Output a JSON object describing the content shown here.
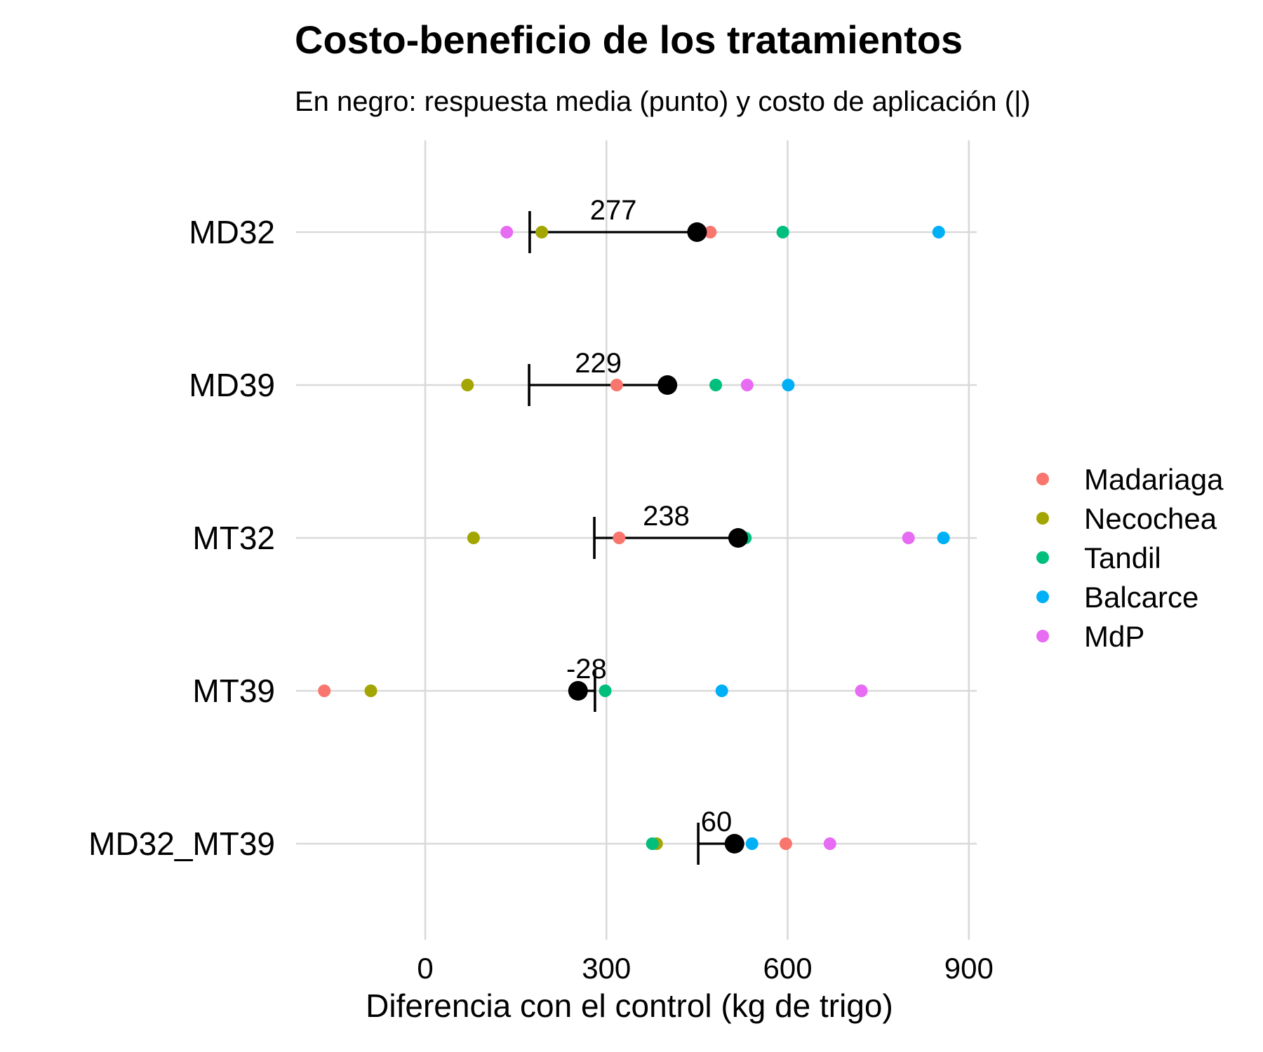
{
  "chart_data": {
    "type": "scatter",
    "title": "Costo-beneficio de los tratamientos",
    "subtitle": "En negro: respuesta media (punto) y costo de aplicación (|)",
    "xlabel": "Diferencia con el control (kg de trigo)",
    "ylabel": "",
    "xlim": [
      -170,
      920
    ],
    "x_ticks": [
      0,
      300,
      600,
      900
    ],
    "x_tick_labels": [
      "0",
      "300",
      "600",
      "900"
    ],
    "grid": true,
    "legend_position": "right",
    "categories": [
      "MD32",
      "MD39",
      "MT32",
      "MT39",
      "MD32_MT39"
    ],
    "series": [
      {
        "name": "Madariaga",
        "color": "#F8766D",
        "values": [
          472,
          317,
          321,
          -167,
          597
        ]
      },
      {
        "name": "Necochea",
        "color": "#A3A500",
        "values": [
          193,
          70,
          80,
          -90,
          383
        ]
      },
      {
        "name": "Tandil",
        "color": "#00BF7D",
        "values": [
          592,
          481,
          530,
          298,
          376
        ]
      },
      {
        "name": "Balcarce",
        "color": "#00B0F6",
        "values": [
          850,
          601,
          858,
          491,
          541
        ]
      },
      {
        "name": "MdP",
        "color": "#E76BF3",
        "values": [
          135,
          533,
          800,
          722,
          670
        ]
      }
    ],
    "mean_response": [
      450,
      401,
      518,
      253,
      512
    ],
    "application_cost": [
      173,
      172,
      280,
      281,
      452
    ],
    "net_labels": [
      "277",
      "229",
      "238",
      "-28",
      "60"
    ]
  }
}
